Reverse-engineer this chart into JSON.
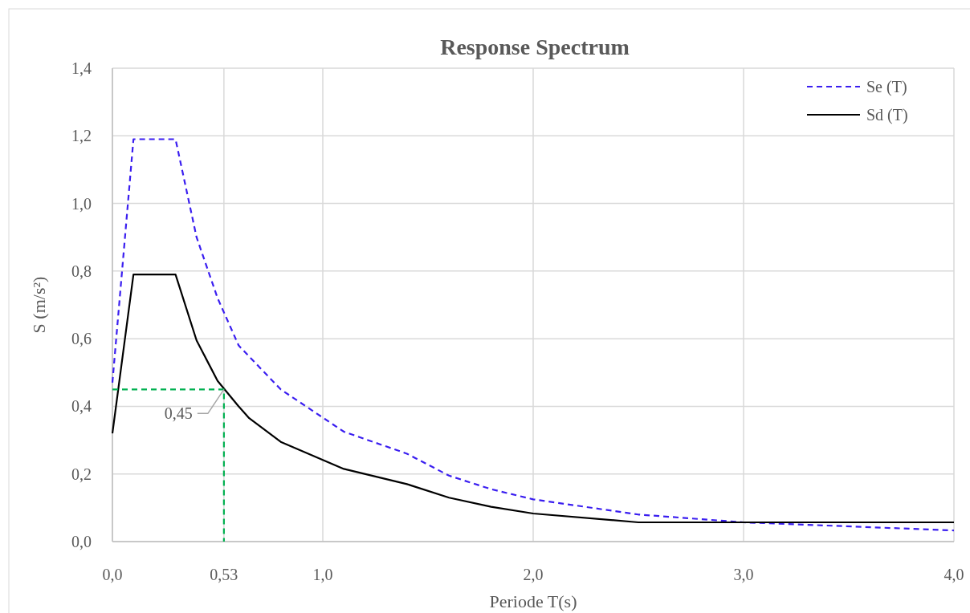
{
  "chart_data": {
    "type": "line",
    "title": "Response Spectrum",
    "xlabel": "Periode T(s)",
    "ylabel": "S (m/s²)",
    "xlim": [
      0,
      4
    ],
    "ylim": [
      0,
      1.4
    ],
    "xticks": [
      {
        "value": 0,
        "label": "0,0"
      },
      {
        "value": 0.53,
        "label": "0,53"
      },
      {
        "value": 1,
        "label": "1,0"
      },
      {
        "value": 2,
        "label": "2,0"
      },
      {
        "value": 3,
        "label": "3,0"
      },
      {
        "value": 4,
        "label": "4,0"
      }
    ],
    "yticks": [
      {
        "value": 0,
        "label": "0,0"
      },
      {
        "value": 0.2,
        "label": "0,2"
      },
      {
        "value": 0.4,
        "label": "0,4"
      },
      {
        "value": 0.6,
        "label": "0,6"
      },
      {
        "value": 0.8,
        "label": "0,8"
      },
      {
        "value": 1.0,
        "label": "1,0"
      },
      {
        "value": 1.2,
        "label": "1,2"
      },
      {
        "value": 1.4,
        "label": "1,4"
      }
    ],
    "grid": true,
    "legend": "top right",
    "marker": "none",
    "series": [
      {
        "name": "Se (T)",
        "color": "#3a1ef0",
        "line_style": "dashed",
        "x": [
          0,
          0.1,
          0.3,
          0.4,
          0.5,
          0.6,
          0.8,
          1.1,
          1.4,
          1.6,
          1.8,
          2.0,
          2.5,
          3.0,
          4.0
        ],
        "values": [
          0.47,
          1.19,
          1.19,
          0.9,
          0.72,
          0.58,
          0.45,
          0.325,
          0.26,
          0.195,
          0.155,
          0.125,
          0.08,
          0.057,
          0.033
        ]
      },
      {
        "name": "Sd (T)",
        "color": "#000000",
        "line_style": "solid",
        "x": [
          0,
          0.1,
          0.3,
          0.4,
          0.5,
          0.6,
          0.65,
          0.8,
          1.1,
          1.4,
          1.6,
          1.8,
          2.0,
          2.5,
          3.0,
          4.0
        ],
        "values": [
          0.32,
          0.79,
          0.79,
          0.595,
          0.475,
          0.4,
          0.365,
          0.295,
          0.215,
          0.17,
          0.13,
          0.103,
          0.083,
          0.057,
          0.057,
          0.057
        ]
      },
      {
        "color": "#00b050",
        "line_style": "dashed",
        "x": [
          0,
          0.53,
          0.53
        ],
        "values": [
          0.45,
          0.45,
          0
        ]
      }
    ],
    "annotations": [
      {
        "text": "0,45",
        "x": 0.53,
        "y": 0.45
      }
    ]
  }
}
